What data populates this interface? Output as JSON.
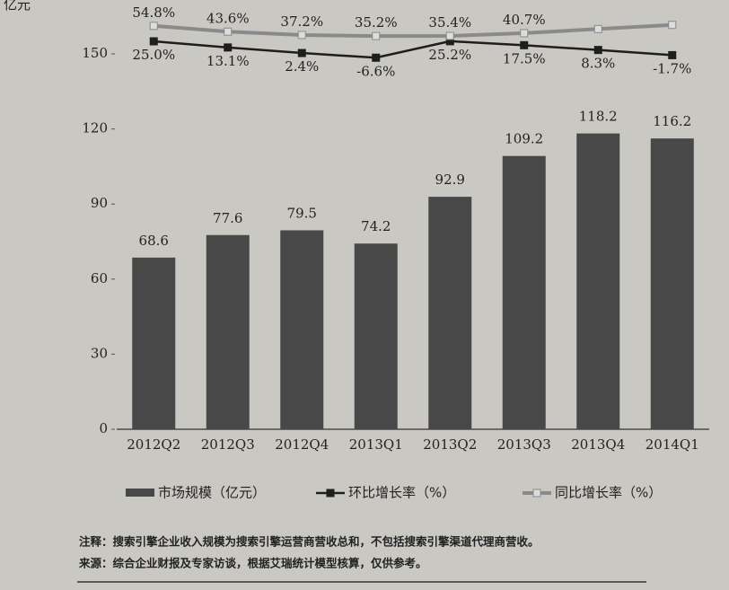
{
  "chart_data": {
    "type": "bar",
    "y_unit": "亿元",
    "categories": [
      "2012Q2",
      "2012Q3",
      "2012Q4",
      "2013Q1",
      "2013Q2",
      "2013Q3",
      "2013Q4",
      "2014Q1"
    ],
    "ylim": [
      0,
      150
    ],
    "yticks": [
      0,
      30,
      60,
      90,
      120,
      150
    ],
    "y2lim": [
      -20,
      70
    ],
    "legend": "bottom",
    "series": [
      {
        "name": "市场规模（亿元）",
        "type": "bar",
        "color": "#484848",
        "values": [
          68.6,
          77.6,
          79.5,
          74.2,
          92.9,
          109.2,
          118.2,
          116.2
        ]
      },
      {
        "name": "环比增长率（%）",
        "type": "line",
        "axis": "y2",
        "color": "#1e1e1e",
        "values": [
          25.0,
          13.1,
          2.4,
          -6.6,
          25.2,
          17.5,
          8.3,
          -1.7
        ],
        "value_labels": [
          "25.0%",
          "13.1%",
          "2.4%",
          "-6.6%",
          "25.2%",
          "17.5%",
          "8.3%",
          "-1.7%"
        ]
      },
      {
        "name": "同比增长率（%）",
        "type": "line",
        "axis": "y2",
        "color": "#8a8a8a",
        "values": [
          54.8,
          43.6,
          37.2,
          35.2,
          35.4,
          40.7,
          48.7,
          56.6
        ],
        "value_labels": [
          "54.8%",
          "43.6%",
          "37.2%",
          "35.2%",
          "35.4%",
          "40.7%",
          null,
          null
        ]
      }
    ]
  },
  "notes": [
    "注释：搜索引擎企业收入规模为搜索引擎运营商营收总和，不包括搜索引擎渠道代理商营收。",
    "来源：综合企业财报及专家访谈，根据艾瑞统计模型核算，仅供参考。"
  ]
}
